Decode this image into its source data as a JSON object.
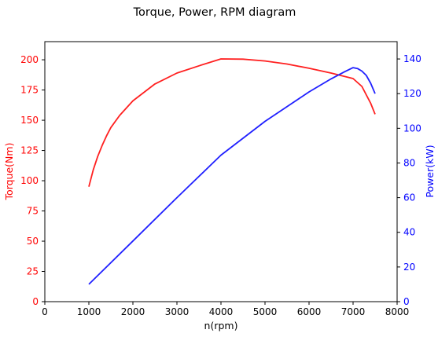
{
  "chart_data": {
    "type": "line",
    "title": "Torque, Power, RPM diagram",
    "xlabel": "n(rpm)",
    "xlim": [
      0,
      8000
    ],
    "x_ticks": [
      0,
      1000,
      2000,
      3000,
      4000,
      5000,
      6000,
      7000,
      8000
    ],
    "grid": false,
    "legend": "none",
    "y_left": {
      "label": "Torque(Nm)",
      "color": "#ff0000",
      "lim": [
        0,
        215
      ],
      "ticks": [
        0,
        25,
        50,
        75,
        100,
        125,
        150,
        175,
        200
      ]
    },
    "y_right": {
      "label": "Power(kW)",
      "color": "#0000ff",
      "lim": [
        0,
        150
      ],
      "ticks": [
        0,
        20,
        40,
        60,
        80,
        100,
        120,
        140
      ]
    },
    "series": [
      {
        "axis": "left",
        "color": "#ff2020",
        "points": [
          [
            1000,
            95
          ],
          [
            1100,
            109
          ],
          [
            1200,
            120
          ],
          [
            1300,
            129
          ],
          [
            1400,
            137
          ],
          [
            1500,
            144
          ],
          [
            1700,
            154
          ],
          [
            2000,
            166
          ],
          [
            2500,
            180
          ],
          [
            3000,
            189
          ],
          [
            3500,
            195
          ],
          [
            4000,
            200.7
          ],
          [
            4500,
            200.5
          ],
          [
            5000,
            199
          ],
          [
            5500,
            196.5
          ],
          [
            6000,
            193
          ],
          [
            6500,
            189
          ],
          [
            7000,
            184.5
          ],
          [
            7200,
            178
          ],
          [
            7400,
            164
          ],
          [
            7500,
            155
          ]
        ]
      },
      {
        "axis": "right",
        "color": "#2020ff",
        "points": [
          [
            1000,
            10
          ],
          [
            2000,
            35
          ],
          [
            3000,
            60
          ],
          [
            4000,
            84.5
          ],
          [
            5000,
            104
          ],
          [
            6000,
            121
          ],
          [
            6500,
            128.5
          ],
          [
            6800,
            132.5
          ],
          [
            7000,
            135
          ],
          [
            7100,
            134.5
          ],
          [
            7200,
            133
          ],
          [
            7300,
            130.5
          ],
          [
            7400,
            126
          ],
          [
            7500,
            120
          ]
        ]
      }
    ]
  }
}
